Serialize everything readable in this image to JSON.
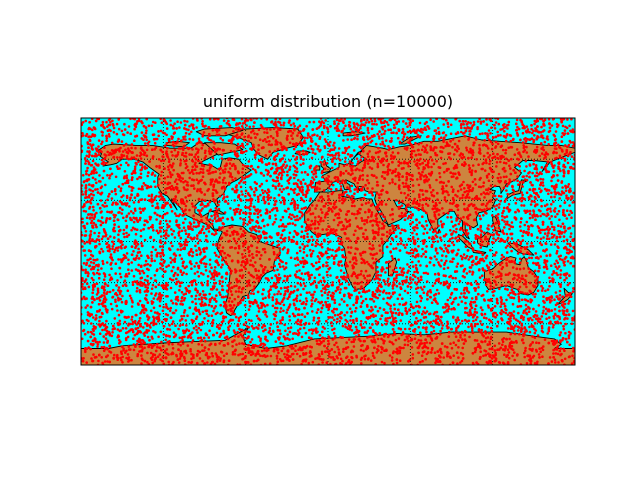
{
  "title": "uniform distribution (n=10000)",
  "map": {
    "projection": "cylindrical",
    "lon_range": [
      -180,
      180
    ],
    "lat_range": [
      -90,
      90
    ],
    "ocean_color": "#00ffff",
    "land_color": "#cd853f",
    "coastline_color": "#000000",
    "graticule": {
      "style": "dotted",
      "color": "#000000",
      "meridians": [
        -120,
        -60,
        0,
        60,
        120
      ],
      "parallels": [
        -60,
        -30,
        0,
        30,
        60
      ]
    }
  },
  "points": {
    "n": 10000,
    "distribution": "uniform",
    "marker_color": "#ff0000"
  }
}
